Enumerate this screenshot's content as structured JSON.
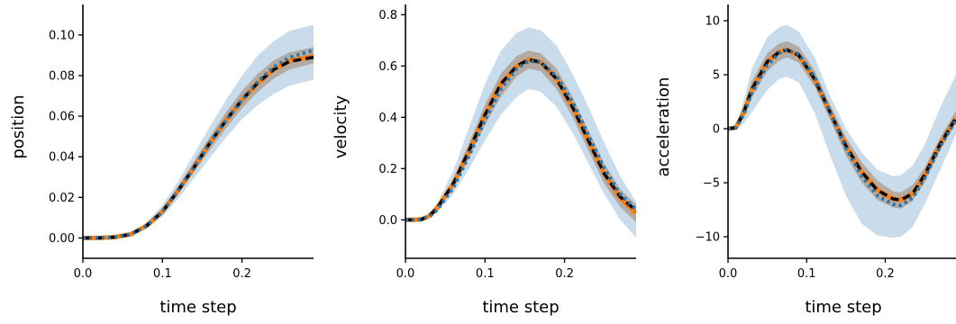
{
  "colors": {
    "band_outer": "#c9dcec",
    "band_inner": "#b3aba3",
    "series_orange": "#ff7f0e",
    "series_black": "#000000",
    "series_blue_dotted": "#1f77b4"
  },
  "chart_data": [
    {
      "type": "line",
      "title": "",
      "xlabel": "time step",
      "ylabel": "position",
      "xlim": [
        0,
        0.29
      ],
      "ylim": [
        -0.01,
        0.115
      ],
      "xticks": [
        0.0,
        0.1,
        0.2
      ],
      "xtick_labels": [
        "0.0",
        "0.1",
        "0.2"
      ],
      "yticks": [
        0.0,
        0.02,
        0.04,
        0.06,
        0.08,
        0.1
      ],
      "ytick_labels": [
        "0.00",
        "0.02",
        "0.04",
        "0.06",
        "0.08",
        "0.10"
      ],
      "grid": false,
      "x": [
        0,
        0.02,
        0.04,
        0.06,
        0.08,
        0.1,
        0.12,
        0.14,
        0.16,
        0.18,
        0.2,
        0.22,
        0.24,
        0.26,
        0.29
      ],
      "series": [
        {
          "role": "outer-band-lower",
          "values": [
            0,
            0,
            0.0002,
            0.0012,
            0.0045,
            0.0105,
            0.0195,
            0.0295,
            0.0395,
            0.0495,
            0.0585,
            0.0655,
            0.071,
            0.075,
            0.078
          ]
        },
        {
          "role": "outer-band-upper",
          "values": [
            0,
            0,
            0.0006,
            0.0023,
            0.0075,
            0.016,
            0.028,
            0.0415,
            0.055,
            0.068,
            0.08,
            0.09,
            0.097,
            0.102,
            0.105
          ]
        },
        {
          "role": "inner-band-lower",
          "values": [
            0,
            0,
            0.0003,
            0.0015,
            0.0052,
            0.0118,
            0.0215,
            0.0325,
            0.0435,
            0.054,
            0.064,
            0.072,
            0.0785,
            0.083,
            0.086
          ]
        },
        {
          "role": "inner-band-upper",
          "values": [
            0,
            0,
            0.0005,
            0.002,
            0.0068,
            0.0145,
            0.0255,
            0.038,
            0.05,
            0.062,
            0.0725,
            0.081,
            0.0875,
            0.0915,
            0.094
          ]
        },
        {
          "role": "mean-orange",
          "values": [
            0,
            0,
            0.0004,
            0.0018,
            0.006,
            0.013,
            0.0235,
            0.035,
            0.047,
            0.058,
            0.068,
            0.0765,
            0.0832,
            0.0872,
            0.0895
          ]
        },
        {
          "role": "target-black-dashed",
          "values": [
            0,
            0,
            0.0004,
            0.0018,
            0.006,
            0.013,
            0.0235,
            0.035,
            0.047,
            0.058,
            0.068,
            0.0765,
            0.083,
            0.087,
            0.089
          ]
        },
        {
          "role": "reference-blue-dotted",
          "values": [
            0,
            0,
            0.0004,
            0.0018,
            0.006,
            0.013,
            0.0235,
            0.035,
            0.047,
            0.058,
            0.068,
            0.077,
            0.0842,
            0.089,
            0.0925
          ]
        }
      ]
    },
    {
      "type": "line",
      "title": "",
      "xlabel": "time step",
      "ylabel": "velocity",
      "xlim": [
        0,
        0.29
      ],
      "ylim": [
        -0.15,
        0.84
      ],
      "xticks": [
        0.0,
        0.1,
        0.2
      ],
      "xtick_labels": [
        "0.0",
        "0.1",
        "0.2"
      ],
      "yticks": [
        0.0,
        0.2,
        0.4,
        0.6,
        0.8
      ],
      "ytick_labels": [
        "0.0",
        "0.2",
        "0.4",
        "0.6",
        "0.8"
      ],
      "grid": false,
      "x": [
        0,
        0.01,
        0.02,
        0.03,
        0.04,
        0.06,
        0.08,
        0.1,
        0.12,
        0.14,
        0.155,
        0.17,
        0.19,
        0.21,
        0.23,
        0.25,
        0.27,
        0.29
      ],
      "series": [
        {
          "role": "outer-band-lower",
          "values": [
            0,
            0,
            0,
            0.005,
            0.03,
            0.1,
            0.2,
            0.31,
            0.41,
            0.48,
            0.51,
            0.5,
            0.44,
            0.34,
            0.22,
            0.1,
            0.0,
            -0.07
          ]
        },
        {
          "role": "outer-band-upper",
          "values": [
            0,
            0,
            0.005,
            0.025,
            0.065,
            0.19,
            0.36,
            0.53,
            0.66,
            0.73,
            0.75,
            0.74,
            0.68,
            0.57,
            0.44,
            0.3,
            0.17,
            0.07
          ]
        },
        {
          "role": "inner-band-lower",
          "values": [
            0,
            0,
            0,
            0.01,
            0.04,
            0.12,
            0.24,
            0.37,
            0.48,
            0.56,
            0.59,
            0.58,
            0.51,
            0.4,
            0.27,
            0.14,
            0.05,
            -0.01
          ]
        },
        {
          "role": "inner-band-upper",
          "values": [
            0,
            0,
            0.005,
            0.02,
            0.055,
            0.16,
            0.3,
            0.45,
            0.57,
            0.64,
            0.66,
            0.65,
            0.59,
            0.48,
            0.35,
            0.22,
            0.12,
            0.06
          ]
        },
        {
          "role": "mean-orange",
          "values": [
            0,
            0,
            0.002,
            0.015,
            0.047,
            0.14,
            0.27,
            0.41,
            0.53,
            0.6,
            0.625,
            0.615,
            0.55,
            0.44,
            0.31,
            0.18,
            0.085,
            0.025
          ]
        },
        {
          "role": "target-black-dashed",
          "values": [
            0,
            0,
            0.002,
            0.015,
            0.047,
            0.14,
            0.27,
            0.41,
            0.53,
            0.6,
            0.625,
            0.615,
            0.55,
            0.44,
            0.31,
            0.18,
            0.09,
            0.035
          ]
        },
        {
          "role": "reference-blue-dotted",
          "values": [
            0,
            0,
            0.002,
            0.012,
            0.04,
            0.125,
            0.25,
            0.39,
            0.51,
            0.59,
            0.62,
            0.615,
            0.56,
            0.46,
            0.33,
            0.2,
            0.1,
            0.04
          ]
        }
      ]
    },
    {
      "type": "line",
      "title": "",
      "xlabel": "time step",
      "ylabel": "acceleration",
      "xlim": [
        0,
        0.29
      ],
      "ylim": [
        -12,
        11.5
      ],
      "xticks": [
        0.0,
        0.1,
        0.2
      ],
      "xtick_labels": [
        "0.0",
        "0.1",
        "0.2"
      ],
      "yticks": [
        -10,
        -5,
        0,
        5,
        10
      ],
      "ytick_labels": [
        "−10",
        "−5",
        "0",
        "5",
        "10"
      ],
      "grid": false,
      "x": [
        0,
        0.01,
        0.02,
        0.03,
        0.05,
        0.065,
        0.075,
        0.09,
        0.11,
        0.13,
        0.15,
        0.17,
        0.19,
        0.21,
        0.22,
        0.235,
        0.25,
        0.27,
        0.29
      ],
      "series": [
        {
          "role": "outer-band-lower",
          "values": [
            0,
            0,
            0.5,
            1.5,
            3.6,
            4.6,
            4.8,
            4.3,
            1.5,
            -2.5,
            -6.2,
            -8.8,
            -9.9,
            -10.1,
            -10.0,
            -9.1,
            -7.0,
            -3.8,
            -0.5
          ]
        },
        {
          "role": "outer-band-upper",
          "values": [
            0,
            0.3,
            2.6,
            5.5,
            8.5,
            9.4,
            9.6,
            9.0,
            6.6,
            3.0,
            0.0,
            -2.2,
            -3.8,
            -4.4,
            -4.3,
            -3.4,
            -1.5,
            2.0,
            5.0
          ]
        },
        {
          "role": "inner-band-lower",
          "values": [
            0,
            0,
            1.0,
            2.8,
            5.3,
            6.3,
            6.6,
            6.1,
            3.9,
            0.8,
            -2.5,
            -5.0,
            -6.6,
            -7.3,
            -7.4,
            -6.7,
            -5.0,
            -2.0,
            0.5
          ]
        },
        {
          "role": "inner-band-upper",
          "values": [
            0,
            0.2,
            2.0,
            4.4,
            7.0,
            7.9,
            8.1,
            7.6,
            5.4,
            2.2,
            -0.8,
            -3.1,
            -4.8,
            -5.8,
            -5.9,
            -5.2,
            -3.6,
            -0.8,
            1.7
          ]
        },
        {
          "role": "mean-orange",
          "values": [
            0,
            0.1,
            1.5,
            3.6,
            6.2,
            7.1,
            7.3,
            6.8,
            4.6,
            1.5,
            -1.6,
            -4.0,
            -5.7,
            -6.5,
            -6.6,
            -6.0,
            -4.3,
            -1.4,
            1.0
          ]
        },
        {
          "role": "target-black-dashed",
          "values": [
            0,
            0.1,
            1.5,
            3.6,
            6.2,
            7.1,
            7.3,
            6.8,
            4.6,
            1.5,
            -1.6,
            -4.0,
            -5.7,
            -6.5,
            -6.6,
            -6.0,
            -4.3,
            -1.4,
            1.0
          ]
        },
        {
          "role": "reference-blue-dotted",
          "values": [
            0,
            0.1,
            1.3,
            3.3,
            5.9,
            7.0,
            7.3,
            6.9,
            4.8,
            1.5,
            -1.8,
            -4.4,
            -6.2,
            -7.0,
            -7.1,
            -6.4,
            -4.6,
            -1.6,
            0.8
          ]
        }
      ]
    }
  ]
}
